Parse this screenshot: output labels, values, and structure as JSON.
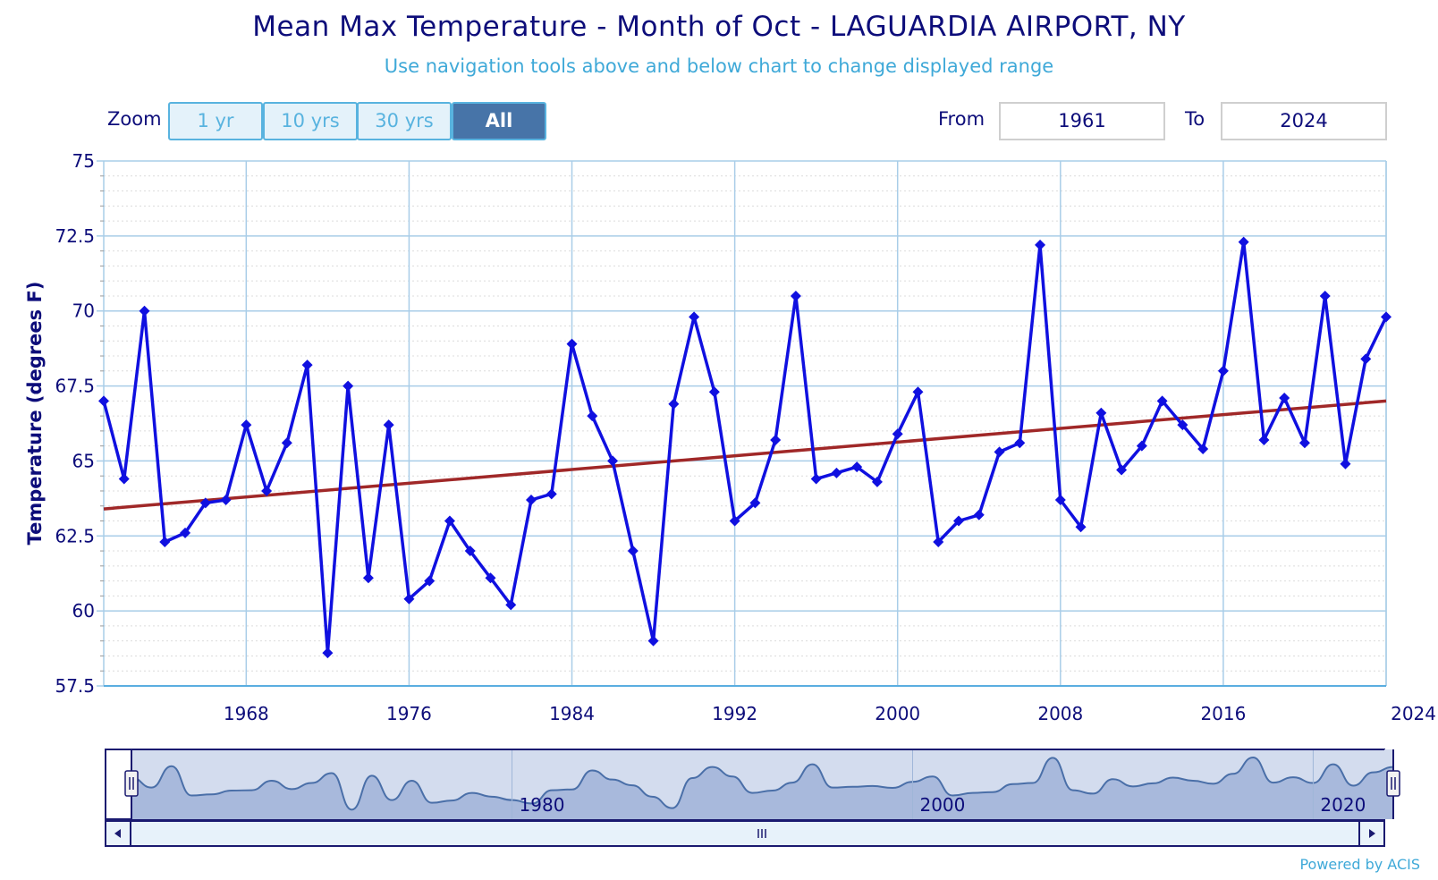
{
  "title": "Mean Max Temperature - Month of Oct - LAGUARDIA AIRPORT, NY",
  "subtitle": "Use navigation tools above and below chart to change displayed range",
  "zoom": {
    "label": "Zoom",
    "buttons": [
      "1 yr",
      "10 yrs",
      "30 yrs",
      "All"
    ],
    "active": "All"
  },
  "range": {
    "from_label": "From",
    "from_value": "1961",
    "to_label": "To",
    "to_value": "2024"
  },
  "powered_by": "Powered by ACIS",
  "colors": {
    "series": "#1010e0",
    "trend": "#a02828",
    "grid": "#a9cde8",
    "axis_text": "#0d0d7a",
    "navigator_fill": "#9aaed6",
    "navigator_line": "#4a6fa8"
  },
  "chart_data": {
    "type": "line",
    "title": "Mean Max Temperature - Month of Oct - LAGUARDIA AIRPORT, NY",
    "subtitle": "Use navigation tools above and below chart to change displayed range",
    "xlabel": "",
    "ylabel": "Temperature (degrees F)",
    "xlim": [
      1961,
      2024
    ],
    "ylim": [
      57.5,
      75
    ],
    "x_ticks": [
      1968,
      1976,
      1984,
      1992,
      2000,
      2008,
      2016,
      2024
    ],
    "y_ticks": [
      57.5,
      60,
      62.5,
      65,
      67.5,
      70,
      72.5,
      75
    ],
    "grid": true,
    "legend": "none",
    "series": [
      {
        "x": [
          1961,
          1962,
          1963,
          1964,
          1965,
          1966,
          1967,
          1968,
          1969,
          1970,
          1971,
          1972,
          1973,
          1974,
          1975,
          1976,
          1977,
          1978,
          1979,
          1980,
          1981,
          1982,
          1983,
          1984,
          1985,
          1986,
          1987,
          1988,
          1989,
          1990,
          1991,
          1992,
          1993,
          1994,
          1995,
          1996,
          1997,
          1998,
          1999,
          2000,
          2001,
          2002,
          2003,
          2004,
          2005,
          2006,
          2007,
          2008,
          2009,
          2010,
          2011,
          2012,
          2013,
          2014,
          2015,
          2016,
          2017,
          2018,
          2019,
          2020,
          2021,
          2022,
          2023,
          2024
        ],
        "values": [
          67.0,
          64.4,
          70.0,
          62.3,
          62.6,
          63.6,
          63.7,
          66.2,
          64.0,
          65.6,
          68.2,
          58.6,
          67.5,
          61.1,
          66.2,
          60.4,
          61.0,
          63.0,
          62.0,
          61.1,
          60.2,
          63.7,
          63.9,
          68.9,
          66.5,
          65.0,
          62.0,
          59.0,
          66.9,
          69.8,
          67.3,
          63.0,
          63.6,
          65.7,
          70.5,
          64.4,
          64.6,
          64.8,
          64.3,
          65.9,
          67.3,
          62.3,
          63.0,
          63.2,
          65.3,
          65.6,
          72.2,
          63.7,
          62.8,
          66.6,
          64.7,
          65.5,
          67.0,
          66.2,
          65.4,
          68.0,
          72.3,
          65.7,
          67.1,
          65.6,
          70.5,
          64.9,
          68.4,
          69.8
        ]
      },
      {
        "type": "trend",
        "x": [
          1961,
          2024
        ],
        "values": [
          63.4,
          67.0
        ]
      }
    ],
    "navigator": {
      "x_ticks": [
        1980,
        2000,
        2020
      ]
    }
  }
}
